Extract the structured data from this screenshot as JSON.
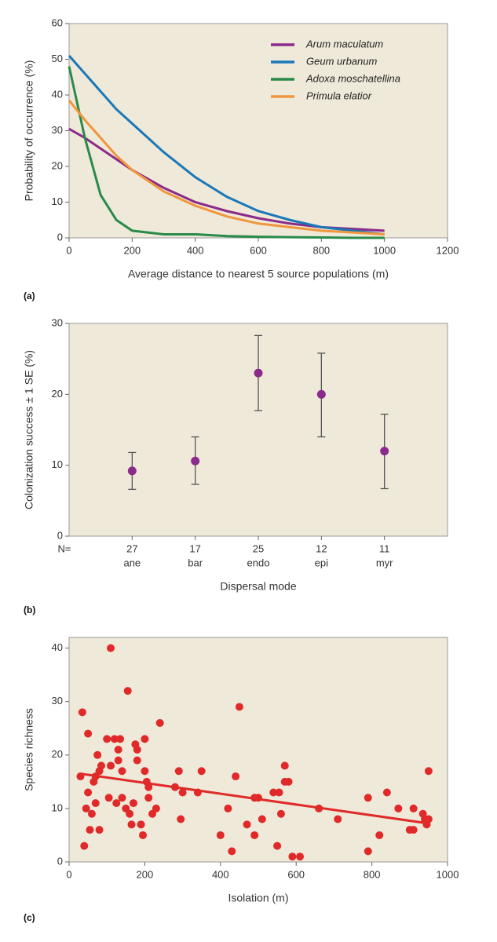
{
  "chart_data": [
    {
      "type": "line",
      "panel_label": "(a)",
      "xlabel": "Average distance to nearest 5 source populations (m)",
      "ylabel": "Probability of occurrence (%)",
      "x": [
        0,
        50,
        100,
        150,
        200,
        300,
        400,
        500,
        600,
        700,
        800,
        900,
        1000
      ],
      "series": [
        {
          "name": "Arum maculatum",
          "color": "#8b2a8a",
          "values": [
            30.5,
            28,
            25,
            22,
            19,
            14,
            10,
            7.5,
            5.5,
            4,
            3,
            2.5,
            2
          ]
        },
        {
          "name": "Geum urbanum",
          "color": "#1a78b8",
          "values": [
            51,
            46,
            41,
            36,
            32,
            24,
            17,
            11.5,
            7.5,
            5,
            3,
            2,
            1
          ]
        },
        {
          "name": "Adoxa moschatellina",
          "color": "#2a8a4a",
          "values": [
            48,
            28,
            12,
            5,
            2,
            1,
            1,
            0.5,
            0.3,
            0.2,
            0.1,
            0,
            0
          ]
        },
        {
          "name": "Primula elatior",
          "color": "#f0963c",
          "values": [
            38.5,
            33,
            28,
            23,
            19,
            13,
            9,
            6,
            4,
            3,
            2,
            1.5,
            1
          ]
        }
      ],
      "xlim": [
        0,
        1200
      ],
      "xticks": [
        0,
        200,
        400,
        600,
        800,
        1000,
        1200
      ],
      "ylim": [
        0,
        60
      ],
      "yticks": [
        0,
        10,
        20,
        30,
        40,
        50,
        60
      ],
      "legend": "upper right",
      "background": "#efe9d9"
    },
    {
      "type": "errorbar",
      "panel_label": "(b)",
      "xlabel": "Dispersal mode",
      "ylabel": "Colonization success ± 1 SE (%)",
      "n_label": "N=",
      "n": [
        27,
        17,
        25,
        12,
        11
      ],
      "categories": [
        "ane",
        "bar",
        "endo",
        "epi",
        "myr"
      ],
      "values": [
        9.2,
        10.6,
        23,
        20,
        12
      ],
      "error_lower": [
        2.6,
        3.3,
        5.3,
        6,
        5.3
      ],
      "error_upper": [
        2.6,
        3.4,
        5.3,
        5.8,
        5.2
      ],
      "color": "#8b2a8a",
      "error_color": "#555",
      "ylim": [
        0,
        30
      ],
      "yticks": [
        0,
        10,
        20,
        30
      ],
      "background": "#efe9d9"
    },
    {
      "type": "scatter",
      "panel_label": "(c)",
      "xlabel": "Isolation (m)",
      "ylabel": "Species richness",
      "x": [
        30,
        35,
        40,
        45,
        50,
        50,
        55,
        60,
        65,
        70,
        70,
        75,
        80,
        80,
        85,
        100,
        105,
        110,
        110,
        120,
        125,
        130,
        130,
        135,
        140,
        140,
        150,
        155,
        160,
        165,
        170,
        175,
        180,
        180,
        190,
        195,
        200,
        200,
        205,
        210,
        210,
        220,
        230,
        240,
        280,
        290,
        295,
        300,
        340,
        350,
        400,
        420,
        430,
        440,
        450,
        470,
        490,
        490,
        500,
        510,
        540,
        550,
        555,
        560,
        570,
        570,
        580,
        590,
        610,
        660,
        710,
        790,
        790,
        820,
        840,
        870,
        900,
        910,
        910,
        935,
        940,
        945,
        950,
        950
      ],
      "y": [
        16,
        28,
        3,
        10,
        13,
        24,
        6,
        9,
        15,
        11,
        16,
        20,
        17,
        6,
        18,
        23,
        12,
        40,
        18,
        23,
        11,
        21,
        19,
        23,
        12,
        17,
        10,
        32,
        9,
        7,
        11,
        22,
        21,
        19,
        7,
        5,
        23,
        17,
        15,
        12,
        14,
        9,
        10,
        26,
        14,
        17,
        8,
        13,
        13,
        17,
        5,
        10,
        2,
        16,
        29,
        7,
        12,
        5,
        12,
        8,
        13,
        3,
        13,
        9,
        18,
        15,
        15,
        1,
        1,
        10,
        8,
        12,
        2,
        5,
        13,
        10,
        6,
        10,
        6,
        9,
        8,
        7,
        17,
        8
      ],
      "color": "#e02a2a",
      "trendline": {
        "x": [
          30,
          950
        ],
        "y": [
          16.5,
          7.2
        ]
      },
      "xlim": [
        0,
        1000
      ],
      "xticks": [
        0,
        200,
        400,
        600,
        800,
        1000
      ],
      "ylim": [
        0,
        42
      ],
      "yticks": [
        0,
        10,
        20,
        30,
        40
      ],
      "background": "#efe9d9"
    }
  ]
}
